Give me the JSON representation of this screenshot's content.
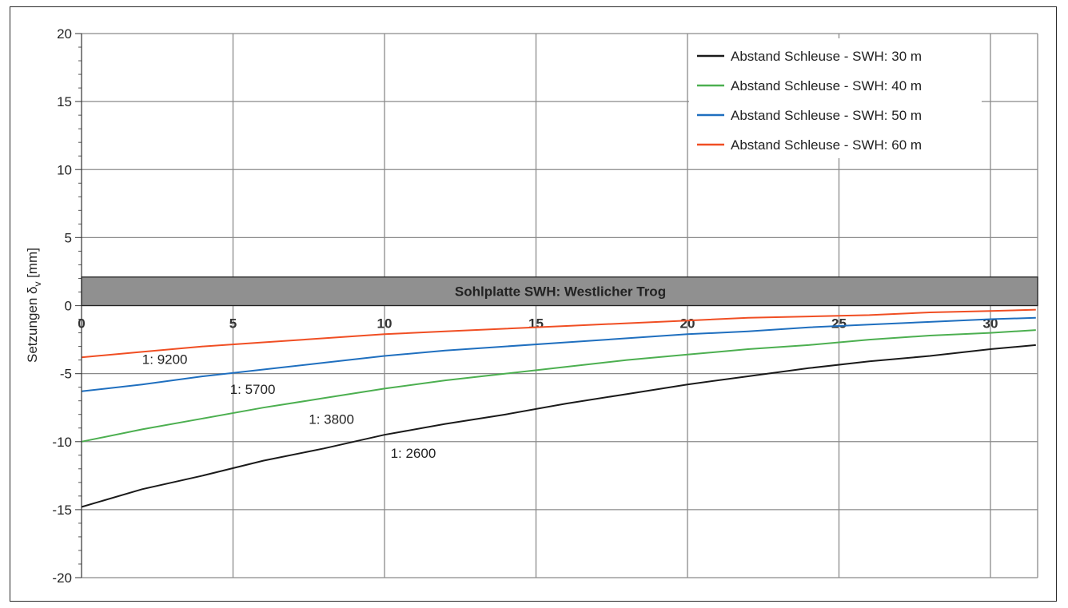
{
  "chart_data": {
    "type": "line",
    "ylabel": "Setzungen δ",
    "ylabel_sub": "v",
    "ylabel_unit": " [mm]",
    "ylim": [
      -20,
      20
    ],
    "xlim": [
      0,
      32
    ],
    "x_ticks": [
      0,
      5,
      10,
      15,
      20,
      25,
      30
    ],
    "y_ticks": [
      20,
      15,
      10,
      5,
      0,
      -5,
      -10,
      -15,
      -20
    ],
    "grid": true,
    "legend_position": "top-right",
    "series": [
      {
        "name": "Abstand Schleuse - SWH: 30 m",
        "color": "#1a1a1a",
        "x": [
          0,
          2,
          4,
          6,
          8,
          10,
          12,
          14,
          16,
          18,
          20,
          22,
          24,
          26,
          28,
          30,
          31.5
        ],
        "y": [
          -14.8,
          -13.5,
          -12.5,
          -11.4,
          -10.5,
          -9.5,
          -8.7,
          -8.0,
          -7.2,
          -6.5,
          -5.8,
          -5.2,
          -4.6,
          -4.1,
          -3.7,
          -3.2,
          -2.9
        ]
      },
      {
        "name": "Abstand Schleuse - SWH: 40 m",
        "color": "#4caf50",
        "x": [
          0,
          2,
          4,
          6,
          8,
          10,
          12,
          14,
          16,
          18,
          20,
          22,
          24,
          26,
          28,
          30,
          31.5
        ],
        "y": [
          -10.0,
          -9.1,
          -8.3,
          -7.5,
          -6.8,
          -6.1,
          -5.5,
          -5.0,
          -4.5,
          -4.0,
          -3.6,
          -3.2,
          -2.9,
          -2.5,
          -2.2,
          -2.0,
          -1.8
        ]
      },
      {
        "name": "Abstand Schleuse - SWH: 50 m",
        "color": "#1f6fbf",
        "x": [
          0,
          2,
          4,
          6,
          8,
          10,
          12,
          14,
          16,
          18,
          20,
          22,
          24,
          26,
          28,
          30,
          31.5
        ],
        "y": [
          -6.3,
          -5.8,
          -5.2,
          -4.7,
          -4.2,
          -3.7,
          -3.3,
          -3.0,
          -2.7,
          -2.4,
          -2.1,
          -1.9,
          -1.6,
          -1.4,
          -1.2,
          -1.0,
          -0.9
        ]
      },
      {
        "name": "Abstand Schleuse - SWH: 60 m",
        "color": "#f04e23",
        "x": [
          0,
          2,
          4,
          6,
          8,
          10,
          12,
          14,
          16,
          18,
          20,
          22,
          24,
          26,
          28,
          30,
          31.5
        ],
        "y": [
          -3.8,
          -3.4,
          -3.0,
          -2.7,
          -2.4,
          -2.1,
          -1.9,
          -1.7,
          -1.5,
          -1.3,
          -1.1,
          -0.9,
          -0.8,
          -0.7,
          -0.5,
          -0.4,
          -0.3
        ]
      }
    ],
    "annotations": [
      {
        "text": "1: 9200",
        "x": 2,
        "y": -4.3
      },
      {
        "text": "1: 5700",
        "x": 4.9,
        "y": -6.5
      },
      {
        "text": "1: 3800",
        "x": 7.5,
        "y": -8.7
      },
      {
        "text": "1: 2600",
        "x": 10.2,
        "y": -11.2
      }
    ],
    "slab": {
      "label": "Sohlplatte SWH: Westlicher Trog",
      "y_bottom": 0,
      "y_top": 2.1,
      "color": "#909090"
    }
  }
}
